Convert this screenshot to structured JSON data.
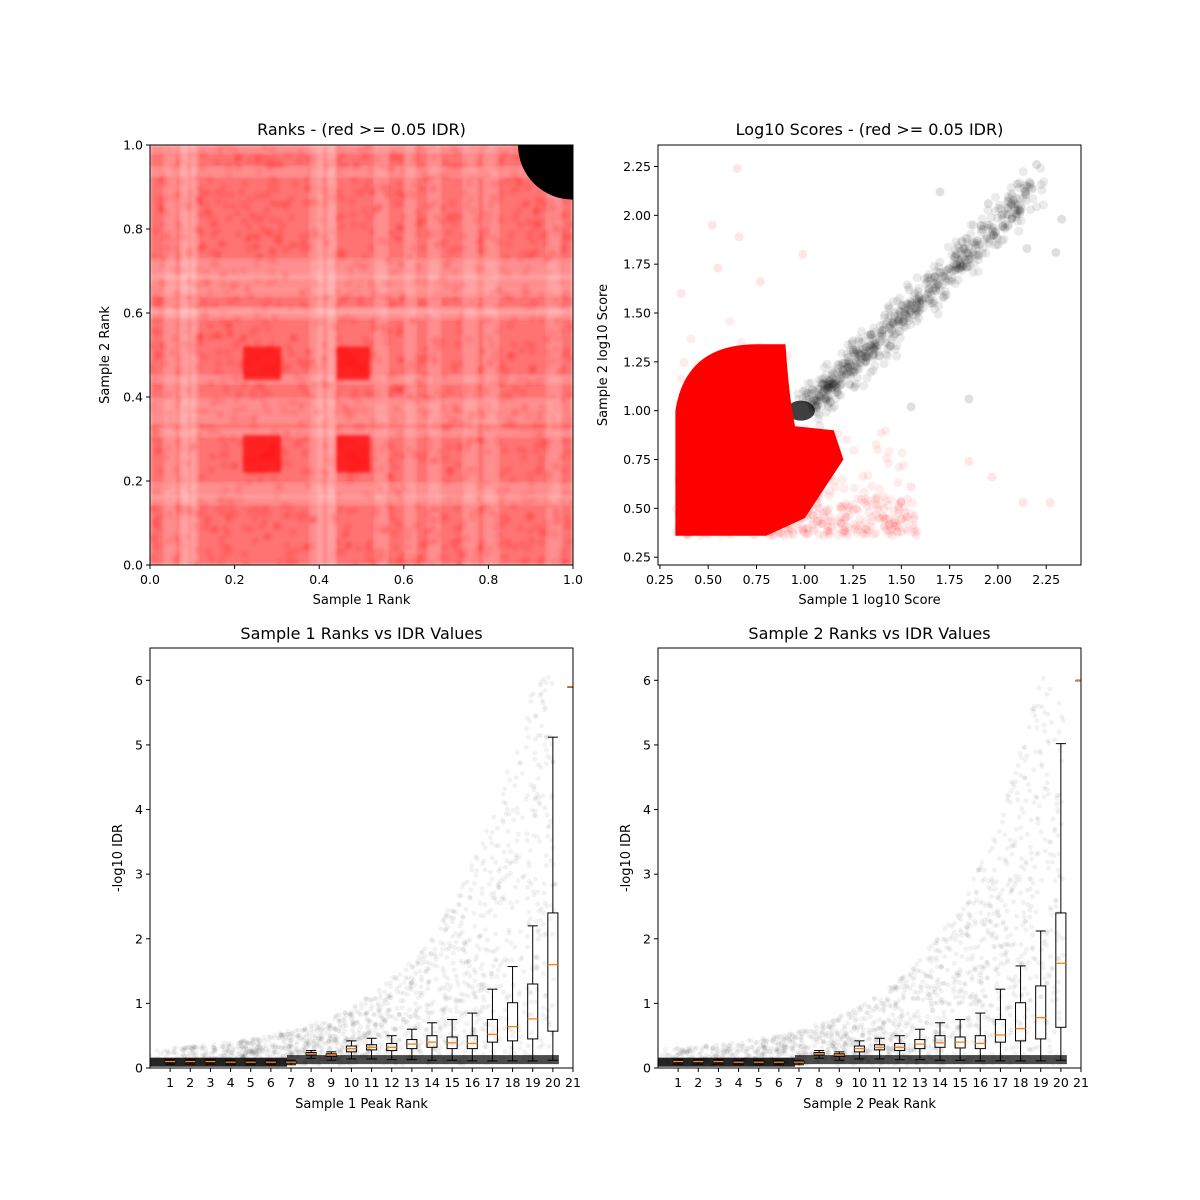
{
  "chart_data": [
    {
      "type": "scatter",
      "title": "Ranks - (red >= 0.05 IDR)",
      "xlabel": "Sample 1 Rank",
      "ylabel": "Sample 2 Rank",
      "xlim": [
        0,
        1
      ],
      "ylim": [
        0,
        1
      ],
      "xticks": [
        "0.0",
        "0.2",
        "0.4",
        "0.6",
        "0.8",
        "1.0"
      ],
      "yticks": [
        "0.0",
        "0.2",
        "0.4",
        "0.6",
        "0.8",
        "1.0"
      ],
      "grid": false,
      "colors": {
        "pass": "#000000",
        "fail": "#ff0000"
      },
      "passing_region": {
        "x_min": 0.87,
        "y_min": 0.87
      },
      "dense_blocks": [
        {
          "x": [
            0.22,
            0.31
          ],
          "y": [
            0.44,
            0.52
          ]
        },
        {
          "x": [
            0.44,
            0.52
          ],
          "y": [
            0.44,
            0.52
          ]
        },
        {
          "x": [
            0.44,
            0.52
          ],
          "y": [
            0.22,
            0.31
          ]
        },
        {
          "x": [
            0.22,
            0.31
          ],
          "y": [
            0.22,
            0.31
          ]
        }
      ]
    },
    {
      "type": "scatter",
      "title": "Log10 Scores - (red >= 0.05 IDR)",
      "xlabel": "Sample 1 log10 Score",
      "ylabel": "Sample 2 log10 Score",
      "xlim": [
        0.24,
        2.43
      ],
      "ylim": [
        0.21,
        2.36
      ],
      "xticks": [
        "0.25",
        "0.50",
        "0.75",
        "1.00",
        "1.25",
        "1.50",
        "1.75",
        "2.00",
        "2.25"
      ],
      "yticks": [
        "0.25",
        "0.50",
        "0.75",
        "1.00",
        "1.25",
        "1.50",
        "1.75",
        "2.00",
        "2.25"
      ],
      "grid": false,
      "colors": {
        "pass": "#000000",
        "fail": "#ff0000"
      },
      "red_core": {
        "x": [
          0.33,
          0.92
        ],
        "y": [
          0.36,
          1.34
        ]
      },
      "black_core": {
        "x": [
          0.9,
          1.35
        ],
        "y": [
          0.9,
          1.4
        ]
      },
      "outliers_red": [
        [
          0.65,
          2.24
        ],
        [
          0.52,
          1.95
        ],
        [
          0.66,
          1.89
        ],
        [
          0.55,
          1.73
        ],
        [
          0.77,
          1.66
        ],
        [
          0.99,
          1.8
        ],
        [
          0.36,
          1.6
        ],
        [
          2.13,
          0.53
        ],
        [
          2.27,
          0.53
        ],
        [
          1.97,
          0.66
        ],
        [
          1.55,
          0.61
        ],
        [
          1.85,
          0.74
        ]
      ],
      "outliers_black": [
        [
          2.2,
          2.26
        ],
        [
          2.1,
          2.16
        ],
        [
          2.15,
          2.15
        ],
        [
          2.33,
          1.98
        ],
        [
          2.3,
          1.81
        ],
        [
          2.0,
          1.85
        ],
        [
          2.15,
          1.83
        ],
        [
          1.7,
          2.12
        ],
        [
          1.95,
          2.06
        ],
        [
          1.85,
          1.06
        ],
        [
          1.55,
          1.02
        ]
      ]
    },
    {
      "type": "box",
      "title": "Sample 1 Ranks vs IDR Values",
      "xlabel": "Sample 1 Peak Rank",
      "ylabel": "-log10 IDR",
      "xlim": [
        0.0,
        21.0
      ],
      "ylim": [
        0,
        6.5
      ],
      "xticks": [
        "1",
        "2",
        "3",
        "4",
        "5",
        "6",
        "7",
        "8",
        "9",
        "10",
        "11",
        "12",
        "13",
        "14",
        "15",
        "16",
        "17",
        "18",
        "19",
        "20",
        "21"
      ],
      "yticks": [
        "0",
        "1",
        "2",
        "3",
        "4",
        "5",
        "6"
      ],
      "grid": false,
      "colors": {
        "points": "#000000",
        "box": "#000000",
        "median": "#ff7f0e"
      },
      "x": [
        1,
        2,
        3,
        4,
        5,
        6,
        7,
        8,
        9,
        10,
        11,
        12,
        13,
        14,
        15,
        16,
        17,
        18,
        19,
        20,
        21
      ],
      "median": [
        0.1,
        0.1,
        0.1,
        0.09,
        0.09,
        0.09,
        0.09,
        0.22,
        0.2,
        0.3,
        0.32,
        0.32,
        0.37,
        0.4,
        0.39,
        0.38,
        0.52,
        0.64,
        0.76,
        1.6,
        5.9
      ],
      "q1": [
        0.09,
        0.09,
        0.09,
        0.08,
        0.08,
        0.08,
        0.08,
        0.2,
        0.18,
        0.25,
        0.28,
        0.27,
        0.3,
        0.32,
        0.3,
        0.3,
        0.4,
        0.42,
        0.45,
        0.57,
        5.9
      ],
      "q3": [
        0.11,
        0.11,
        0.11,
        0.1,
        0.1,
        0.1,
        0.1,
        0.24,
        0.22,
        0.34,
        0.36,
        0.38,
        0.44,
        0.5,
        0.48,
        0.5,
        0.75,
        1.01,
        1.3,
        2.4,
        5.9
      ],
      "whisker_low": [
        0.06,
        0.06,
        0.06,
        0.05,
        0.05,
        0.05,
        0.05,
        0.15,
        0.12,
        0.14,
        0.14,
        0.13,
        0.13,
        0.12,
        0.12,
        0.11,
        0.11,
        0.11,
        0.11,
        0.12,
        5.9
      ],
      "whisker_high": [
        0.13,
        0.13,
        0.13,
        0.12,
        0.12,
        0.12,
        0.12,
        0.27,
        0.25,
        0.42,
        0.46,
        0.5,
        0.6,
        0.7,
        0.75,
        0.85,
        1.22,
        1.57,
        2.2,
        5.12,
        5.9
      ]
    },
    {
      "type": "box",
      "title": "Sample 2 Ranks vs IDR Values",
      "xlabel": "Sample 2 Peak Rank",
      "ylabel": "-log10 IDR",
      "xlim": [
        0.0,
        21.0
      ],
      "ylim": [
        0,
        6.5
      ],
      "xticks": [
        "1",
        "2",
        "3",
        "4",
        "5",
        "6",
        "7",
        "8",
        "9",
        "10",
        "11",
        "12",
        "13",
        "14",
        "15",
        "16",
        "17",
        "18",
        "19",
        "20",
        "21"
      ],
      "yticks": [
        "0",
        "1",
        "2",
        "3",
        "4",
        "5",
        "6"
      ],
      "grid": false,
      "colors": {
        "points": "#000000",
        "box": "#000000",
        "median": "#ff7f0e"
      },
      "x": [
        1,
        2,
        3,
        4,
        5,
        6,
        7,
        8,
        9,
        10,
        11,
        12,
        13,
        14,
        15,
        16,
        17,
        18,
        19,
        20,
        21
      ],
      "median": [
        0.1,
        0.1,
        0.1,
        0.09,
        0.09,
        0.09,
        0.09,
        0.22,
        0.2,
        0.3,
        0.32,
        0.32,
        0.37,
        0.39,
        0.4,
        0.38,
        0.51,
        0.61,
        0.78,
        1.62,
        6.0
      ],
      "q1": [
        0.09,
        0.09,
        0.09,
        0.08,
        0.08,
        0.08,
        0.08,
        0.2,
        0.18,
        0.25,
        0.28,
        0.27,
        0.3,
        0.32,
        0.31,
        0.3,
        0.4,
        0.42,
        0.45,
        0.63,
        6.0
      ],
      "q3": [
        0.11,
        0.11,
        0.11,
        0.1,
        0.1,
        0.1,
        0.1,
        0.24,
        0.22,
        0.34,
        0.36,
        0.38,
        0.44,
        0.5,
        0.48,
        0.5,
        0.75,
        1.01,
        1.27,
        2.4,
        6.0
      ],
      "whisker_low": [
        0.06,
        0.06,
        0.06,
        0.05,
        0.05,
        0.05,
        0.05,
        0.15,
        0.12,
        0.14,
        0.14,
        0.13,
        0.13,
        0.12,
        0.12,
        0.11,
        0.11,
        0.11,
        0.11,
        0.12,
        6.0
      ],
      "whisker_high": [
        0.13,
        0.13,
        0.13,
        0.12,
        0.12,
        0.12,
        0.12,
        0.27,
        0.25,
        0.42,
        0.46,
        0.5,
        0.6,
        0.7,
        0.75,
        0.85,
        1.22,
        1.58,
        2.12,
        5.02,
        6.0
      ]
    }
  ]
}
